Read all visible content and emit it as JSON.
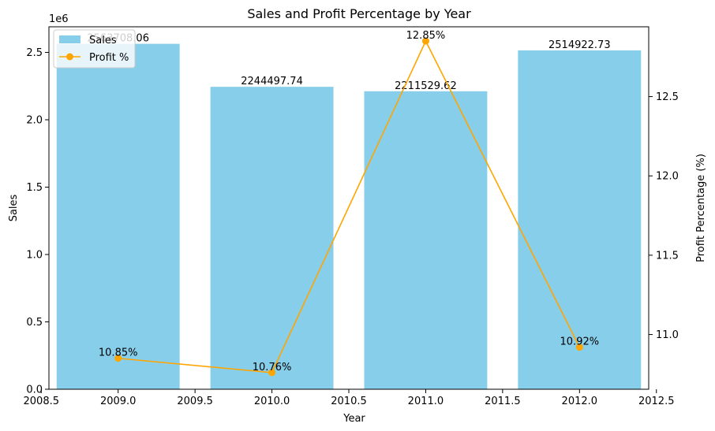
{
  "chart_data": {
    "type": "bar",
    "title": "Sales and Profit Percentage by Year",
    "xlabel": "Year",
    "ylabel": "Sales",
    "y2label": "Profit Percentage (%)",
    "y_offset_label": "1e6",
    "xlim": [
      2008.55,
      2012.45
    ],
    "ylim": [
      0,
      2690000
    ],
    "y2lim": [
      10.655,
      12.94
    ],
    "x_ticks": [
      2008.5,
      2009.0,
      2009.5,
      2010.0,
      2010.5,
      2011.0,
      2011.5,
      2012.0,
      2012.5
    ],
    "x_tick_labels": [
      "2008.5",
      "2009.0",
      "2009.5",
      "2010.0",
      "2010.5",
      "2011.0",
      "2011.5",
      "2012.0",
      "2012.5"
    ],
    "y_ticks": [
      0,
      500000,
      1000000,
      1500000,
      2000000,
      2500000
    ],
    "y_tick_labels": [
      "0.0",
      "0.5",
      "1.0",
      "1.5",
      "2.0",
      "2.5"
    ],
    "y2_ticks": [
      11.0,
      11.5,
      12.0,
      12.5
    ],
    "y2_tick_labels": [
      "11.0",
      "11.5",
      "12.0",
      "12.5"
    ],
    "x": [
      2009,
      2010,
      2011,
      2012
    ],
    "bar_width": 0.8,
    "series": [
      {
        "name": "Sales",
        "kind": "bar",
        "axis": "left",
        "color": "#87ceeb",
        "values": [
          2563708.06,
          2244497.74,
          2211529.62,
          2514922.73
        ],
        "labels": [
          "2563708.06",
          "2244497.74",
          "2211529.62",
          "2514922.73"
        ]
      },
      {
        "name": "Profit %",
        "kind": "line",
        "axis": "right",
        "color": "#ffa500",
        "values": [
          10.85,
          10.76,
          12.85,
          10.92
        ],
        "labels": [
          "10.85%",
          "10.76%",
          "12.85%",
          "10.92%"
        ]
      }
    ],
    "legend_position": "top-left",
    "grid": false
  }
}
